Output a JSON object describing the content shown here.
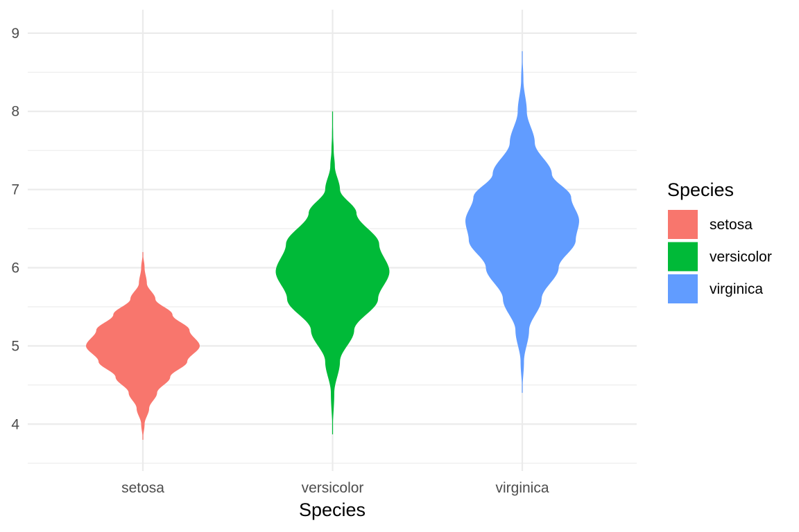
{
  "chart_data": {
    "type": "violin",
    "title": "",
    "xlabel": "Species",
    "ylabel": "",
    "ylim": [
      3.4,
      9.3
    ],
    "yticks": [
      4,
      5,
      6,
      7,
      8,
      9
    ],
    "grid": true,
    "categories": [
      "setosa",
      "versicolor",
      "virginica"
    ],
    "legend": {
      "title": "Species",
      "position": "right"
    },
    "series": [
      {
        "name": "setosa",
        "color": "#F8766D",
        "range": [
          3.8,
          6.2
        ],
        "profile": [
          [
            3.8,
            0.0
          ],
          [
            4.0,
            0.03
          ],
          [
            4.2,
            0.11
          ],
          [
            4.4,
            0.25
          ],
          [
            4.6,
            0.48
          ],
          [
            4.8,
            0.78
          ],
          [
            5.0,
            1.0
          ],
          [
            5.2,
            0.82
          ],
          [
            5.4,
            0.52
          ],
          [
            5.6,
            0.22
          ],
          [
            5.8,
            0.07
          ],
          [
            6.0,
            0.03
          ],
          [
            6.2,
            0.0
          ]
        ]
      },
      {
        "name": "versicolor",
        "color": "#00BA38",
        "range": [
          3.87,
          8.0
        ],
        "profile": [
          [
            3.87,
            0.0
          ],
          [
            4.4,
            0.03
          ],
          [
            4.8,
            0.13
          ],
          [
            5.2,
            0.38
          ],
          [
            5.6,
            0.8
          ],
          [
            5.95,
            1.0
          ],
          [
            6.3,
            0.82
          ],
          [
            6.7,
            0.42
          ],
          [
            7.0,
            0.13
          ],
          [
            7.3,
            0.04
          ],
          [
            7.5,
            0.02
          ],
          [
            7.7,
            0.01
          ],
          [
            8.0,
            0.0
          ]
        ]
      },
      {
        "name": "virginica",
        "color": "#619CFF",
        "range": [
          4.4,
          8.77
        ],
        "profile": [
          [
            4.4,
            0.0
          ],
          [
            4.8,
            0.03
          ],
          [
            5.2,
            0.12
          ],
          [
            5.6,
            0.34
          ],
          [
            6.0,
            0.64
          ],
          [
            6.35,
            0.94
          ],
          [
            6.6,
            1.0
          ],
          [
            6.9,
            0.86
          ],
          [
            7.2,
            0.52
          ],
          [
            7.6,
            0.22
          ],
          [
            8.0,
            0.08
          ],
          [
            8.4,
            0.02
          ],
          [
            8.77,
            0.0
          ]
        ]
      }
    ]
  }
}
